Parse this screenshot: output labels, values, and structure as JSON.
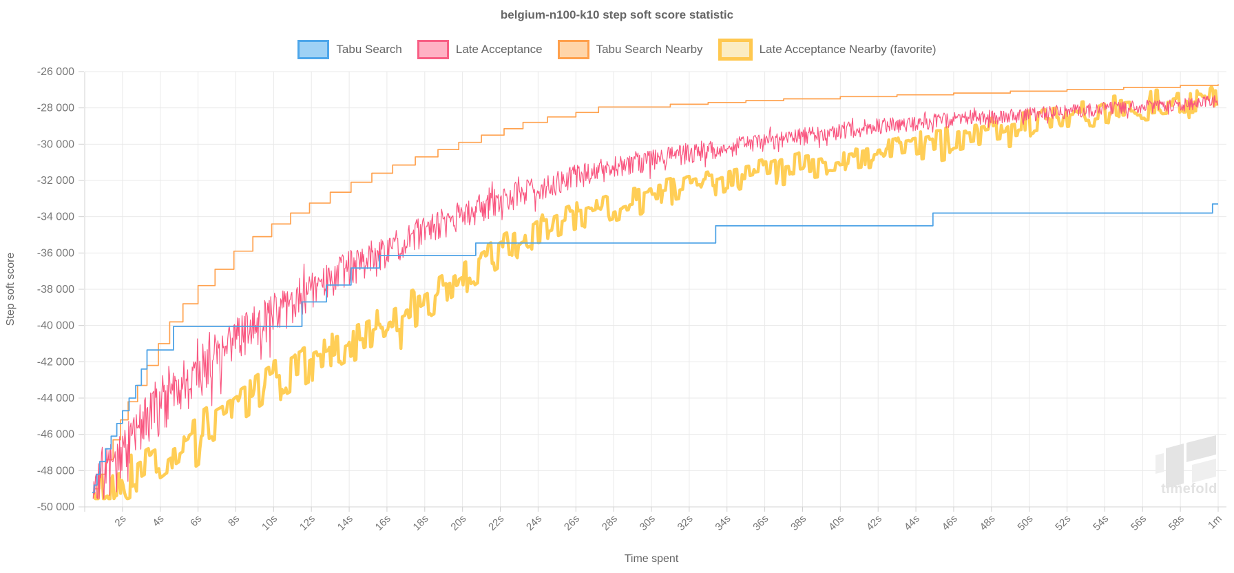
{
  "title": "belgium-n100-k10 step soft score statistic",
  "watermark": {
    "text": "timefold",
    "shape_color": "#E4E4E4",
    "shape_color_light": "#EFEFEF",
    "text_color": "#E2E2E2"
  },
  "legend": {
    "items": [
      {
        "label": "Tabu Search",
        "border": "#4DA6EA",
        "fill": "#9ED1F5",
        "border_width": 3
      },
      {
        "label": "Late Acceptance",
        "border": "#F85E84",
        "fill": "#FFB1C4",
        "border_width": 3
      },
      {
        "label": "Tabu Search Nearby",
        "border": "#FFA04C",
        "fill": "#FFD5A9",
        "border_width": 3
      },
      {
        "label": "Late Acceptance Nearby (favorite)",
        "border": "#FFC84F",
        "fill": "#FBECC2",
        "border_width": 5
      }
    ]
  },
  "chart_data": {
    "type": "line",
    "title": "belgium-n100-k10 step soft score statistic",
    "xlabel": "Time spent",
    "ylabel": "Step soft score",
    "xlim": [
      0,
      60
    ],
    "ylim": [
      -50000,
      -26000
    ],
    "grid": true,
    "legend_position": "top",
    "x_ticks": [
      {
        "t": 2,
        "label": "2s"
      },
      {
        "t": 4,
        "label": "4s"
      },
      {
        "t": 6,
        "label": "6s"
      },
      {
        "t": 8,
        "label": "8s"
      },
      {
        "t": 10,
        "label": "10s"
      },
      {
        "t": 12,
        "label": "12s"
      },
      {
        "t": 14,
        "label": "14s"
      },
      {
        "t": 16,
        "label": "16s"
      },
      {
        "t": 18,
        "label": "18s"
      },
      {
        "t": 20,
        "label": "20s"
      },
      {
        "t": 22,
        "label": "22s"
      },
      {
        "t": 24,
        "label": "24s"
      },
      {
        "t": 26,
        "label": "26s"
      },
      {
        "t": 28,
        "label": "28s"
      },
      {
        "t": 30,
        "label": "30s"
      },
      {
        "t": 32,
        "label": "32s"
      },
      {
        "t": 34,
        "label": "34s"
      },
      {
        "t": 36,
        "label": "36s"
      },
      {
        "t": 38,
        "label": "38s"
      },
      {
        "t": 40,
        "label": "40s"
      },
      {
        "t": 42,
        "label": "42s"
      },
      {
        "t": 44,
        "label": "44s"
      },
      {
        "t": 46,
        "label": "46s"
      },
      {
        "t": 48,
        "label": "48s"
      },
      {
        "t": 50,
        "label": "50s"
      },
      {
        "t": 52,
        "label": "52s"
      },
      {
        "t": 54,
        "label": "54s"
      },
      {
        "t": 56,
        "label": "56s"
      },
      {
        "t": 58,
        "label": "58s"
      },
      {
        "t": 60,
        "label": "1m"
      }
    ],
    "y_ticks": [
      {
        "v": -26000,
        "label": "-26 000"
      },
      {
        "v": -28000,
        "label": "-28 000"
      },
      {
        "v": -30000,
        "label": "-30 000"
      },
      {
        "v": -32000,
        "label": "-32 000"
      },
      {
        "v": -34000,
        "label": "-34 000"
      },
      {
        "v": -36000,
        "label": "-36 000"
      },
      {
        "v": -38000,
        "label": "-38 000"
      },
      {
        "v": -40000,
        "label": "-40 000"
      },
      {
        "v": -42000,
        "label": "-42 000"
      },
      {
        "v": -44000,
        "label": "-44 000"
      },
      {
        "v": -46000,
        "label": "-46 000"
      },
      {
        "v": -48000,
        "label": "-48 000"
      },
      {
        "v": -50000,
        "label": "-50 000"
      }
    ],
    "series": [
      {
        "name": "Tabu Search",
        "color": "#4FA3E6",
        "style": "step",
        "width": 1.8,
        "points": [
          [
            0.4,
            -49200
          ],
          [
            0.5,
            -48800
          ],
          [
            0.65,
            -48200
          ],
          [
            0.8,
            -47500
          ],
          [
            1.1,
            -46800
          ],
          [
            1.4,
            -46100
          ],
          [
            1.7,
            -45400
          ],
          [
            2.0,
            -44700
          ],
          [
            2.35,
            -44000
          ],
          [
            2.7,
            -43300
          ],
          [
            3.0,
            -42400
          ],
          [
            3.3,
            -41350
          ],
          [
            4.7,
            -40050
          ],
          [
            11.5,
            -38700
          ],
          [
            12.8,
            -37770
          ],
          [
            14.1,
            -36830
          ],
          [
            15.6,
            -36140
          ],
          [
            20.7,
            -35450
          ],
          [
            33.4,
            -34500
          ],
          [
            44.9,
            -33800
          ],
          [
            59.7,
            -33300
          ],
          [
            60,
            -33300
          ]
        ]
      },
      {
        "name": "Late Acceptance",
        "color": "#F9557F",
        "style": "noisy",
        "width": 1.2,
        "noise": {
          "base": 260,
          "extra": 1350,
          "decay": 18,
          "down_bias": 1.35,
          "dt": 0.04,
          "hold": 1,
          "seed": 7
        },
        "points": [
          [
            0.45,
            -49300
          ],
          [
            1,
            -48300
          ],
          [
            2,
            -46800
          ],
          [
            3,
            -45500
          ],
          [
            4,
            -44400
          ],
          [
            5,
            -43400
          ],
          [
            6,
            -42400
          ],
          [
            7,
            -41500
          ],
          [
            8,
            -40700
          ],
          [
            9,
            -39950
          ],
          [
            10,
            -39250
          ],
          [
            11,
            -38600
          ],
          [
            12,
            -37950
          ],
          [
            13,
            -37350
          ],
          [
            14,
            -36750
          ],
          [
            15,
            -36200
          ],
          [
            16,
            -35700
          ],
          [
            17,
            -35200
          ],
          [
            18,
            -34700
          ],
          [
            19,
            -34250
          ],
          [
            20,
            -33800
          ],
          [
            22,
            -33000
          ],
          [
            24,
            -32300
          ],
          [
            26,
            -31700
          ],
          [
            28,
            -31200
          ],
          [
            30,
            -30800
          ],
          [
            32,
            -30400
          ],
          [
            34,
            -30100
          ],
          [
            36,
            -29800
          ],
          [
            38,
            -29500
          ],
          [
            40,
            -29200
          ],
          [
            42,
            -28950
          ],
          [
            44,
            -28750
          ],
          [
            46,
            -28600
          ],
          [
            48,
            -28450
          ],
          [
            50,
            -28300
          ],
          [
            52,
            -28150
          ],
          [
            54,
            -28000
          ],
          [
            56,
            -27900
          ],
          [
            58,
            -27800
          ],
          [
            60,
            -27600
          ]
        ]
      },
      {
        "name": "Tabu Search Nearby",
        "color": "#FFA24F",
        "style": "step",
        "width": 1.7,
        "points": [
          [
            0.55,
            -49000
          ],
          [
            0.8,
            -48200
          ],
          [
            1.1,
            -47400
          ],
          [
            1.5,
            -46300
          ],
          [
            1.9,
            -45200
          ],
          [
            2.3,
            -44200
          ],
          [
            2.8,
            -43300
          ],
          [
            3.3,
            -42200
          ],
          [
            3.9,
            -41000
          ],
          [
            4.5,
            -39800
          ],
          [
            5.2,
            -38800
          ],
          [
            6.0,
            -37800
          ],
          [
            6.9,
            -36900
          ],
          [
            7.9,
            -35900
          ],
          [
            8.9,
            -35100
          ],
          [
            9.9,
            -34400
          ],
          [
            10.9,
            -33800
          ],
          [
            11.9,
            -33250
          ],
          [
            13.0,
            -32650
          ],
          [
            14.1,
            -32100
          ],
          [
            15.2,
            -31600
          ],
          [
            16.3,
            -31150
          ],
          [
            17.5,
            -30700
          ],
          [
            18.7,
            -30300
          ],
          [
            19.8,
            -29900
          ],
          [
            21.0,
            -29500
          ],
          [
            22.2,
            -29150
          ],
          [
            23.2,
            -28800
          ],
          [
            24.5,
            -28500
          ],
          [
            26.0,
            -28250
          ],
          [
            27.2,
            -27950
          ],
          [
            31.0,
            -27800
          ],
          [
            33.0,
            -27700
          ],
          [
            35.0,
            -27600
          ],
          [
            37.0,
            -27500
          ],
          [
            40.0,
            -27380
          ],
          [
            43.0,
            -27280
          ],
          [
            46.0,
            -27180
          ],
          [
            49.0,
            -27080
          ],
          [
            52.0,
            -26980
          ],
          [
            55.0,
            -26870
          ],
          [
            58.0,
            -26760
          ],
          [
            60,
            -26700
          ]
        ]
      },
      {
        "name": "Late Acceptance Nearby (favorite)",
        "color": "#FFCE56",
        "style": "noisy",
        "width": 4.5,
        "noise": {
          "base": 520,
          "extra": 700,
          "decay": 30,
          "down_bias": 1.25,
          "dt": 0.07,
          "hold": 3,
          "seed": 13
        },
        "points": [
          [
            0.5,
            -49350
          ],
          [
            1,
            -49100
          ],
          [
            2,
            -48600
          ],
          [
            3,
            -47950
          ],
          [
            4,
            -47300
          ],
          [
            5,
            -46600
          ],
          [
            6,
            -45900
          ],
          [
            7,
            -45200
          ],
          [
            8,
            -44500
          ],
          [
            9,
            -43800
          ],
          [
            10,
            -43100
          ],
          [
            11,
            -42500
          ],
          [
            12,
            -41950
          ],
          [
            13,
            -41400
          ],
          [
            14,
            -40900
          ],
          [
            15,
            -40350
          ],
          [
            16,
            -39800
          ],
          [
            17,
            -39250
          ],
          [
            18,
            -38650
          ],
          [
            19,
            -38000
          ],
          [
            20,
            -37300
          ],
          [
            21,
            -36600
          ],
          [
            22,
            -35900
          ],
          [
            23,
            -35300
          ],
          [
            24,
            -34800
          ],
          [
            25,
            -34400
          ],
          [
            26,
            -34000
          ],
          [
            27,
            -33650
          ],
          [
            28,
            -33300
          ],
          [
            30,
            -32800
          ],
          [
            32,
            -32400
          ],
          [
            34,
            -31950
          ],
          [
            36,
            -31500
          ],
          [
            38,
            -31150
          ],
          [
            40,
            -30850
          ],
          [
            42,
            -30450
          ],
          [
            44,
            -30050
          ],
          [
            46,
            -29600
          ],
          [
            48,
            -29150
          ],
          [
            50,
            -28750
          ],
          [
            52,
            -28400
          ],
          [
            54,
            -28150
          ],
          [
            56,
            -27950
          ],
          [
            58,
            -27750
          ],
          [
            60,
            -27550
          ]
        ]
      }
    ]
  }
}
